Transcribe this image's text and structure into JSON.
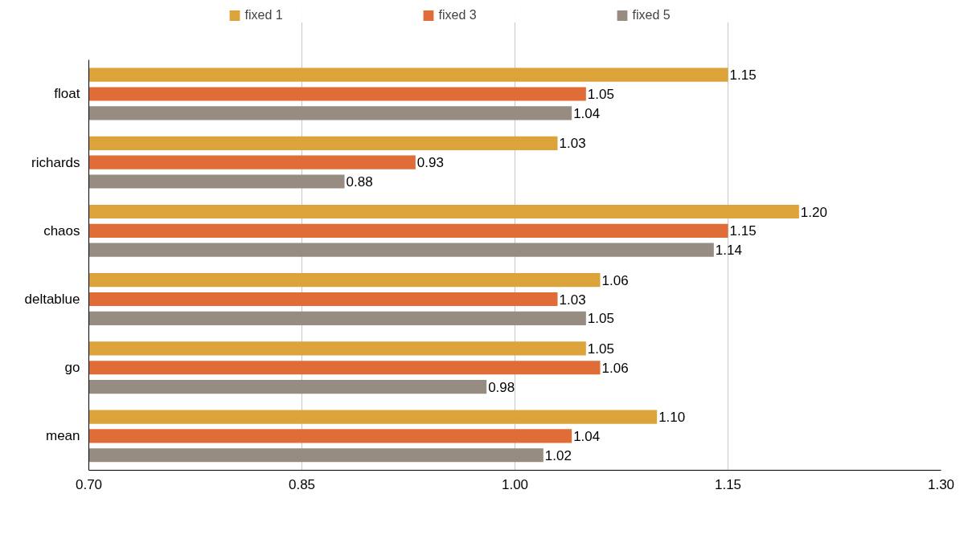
{
  "chart_data": {
    "type": "bar",
    "orientation": "horizontal",
    "categories": [
      "float",
      "richards",
      "chaos",
      "deltablue",
      "go",
      "mean"
    ],
    "series": [
      {
        "name": "fixed 1",
        "color": "#dca33b",
        "values": [
          1.15,
          1.03,
          1.2,
          1.06,
          1.05,
          1.1
        ],
        "value_labels": [
          "1.15",
          "1.03",
          "1.20",
          "1.06",
          "1.05",
          "1.10"
        ]
      },
      {
        "name": "fixed 3",
        "color": "#e06c37",
        "values": [
          1.05,
          0.93,
          1.15,
          1.03,
          1.06,
          1.04
        ],
        "value_labels": [
          "1.05",
          "0.93",
          "1.15",
          "1.03",
          "1.06",
          "1.04"
        ]
      },
      {
        "name": "fixed 5",
        "color": "#978c81",
        "values": [
          1.04,
          0.88,
          1.14,
          1.05,
          0.98,
          1.02
        ],
        "value_labels": [
          "1.04",
          "0.88",
          "1.14",
          "1.05",
          "0.98",
          "1.02"
        ]
      }
    ],
    "xlim": [
      0.7,
      1.3
    ],
    "xticks": [
      {
        "value": 0.7,
        "label": "0.70"
      },
      {
        "value": 0.85,
        "label": "0.85"
      },
      {
        "value": 1.0,
        "label": "1.00"
      },
      {
        "value": 1.15,
        "label": "1.15"
      },
      {
        "value": 1.3,
        "label": "1.30"
      }
    ],
    "grid": "x",
    "legend": "top"
  }
}
